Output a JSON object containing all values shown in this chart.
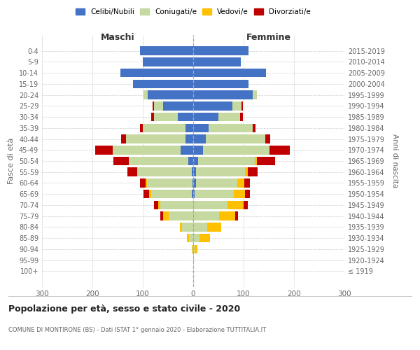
{
  "age_groups": [
    "0-4",
    "5-9",
    "10-14",
    "15-19",
    "20-24",
    "25-29",
    "30-34",
    "35-39",
    "40-44",
    "45-49",
    "50-54",
    "55-59",
    "60-64",
    "65-69",
    "70-74",
    "75-79",
    "80-84",
    "85-89",
    "90-94",
    "95-99",
    "100+"
  ],
  "birth_years": [
    "2015-2019",
    "2010-2014",
    "2005-2009",
    "2000-2004",
    "1995-1999",
    "1990-1994",
    "1985-1989",
    "1980-1984",
    "1975-1979",
    "1970-1974",
    "1965-1969",
    "1960-1964",
    "1955-1959",
    "1950-1954",
    "1945-1949",
    "1940-1944",
    "1935-1939",
    "1930-1934",
    "1925-1929",
    "1920-1924",
    "≤ 1919"
  ],
  "male_celibi": [
    105,
    100,
    145,
    120,
    90,
    60,
    30,
    15,
    15,
    25,
    10,
    3,
    2,
    3,
    0,
    0,
    0,
    0,
    0,
    0,
    0
  ],
  "male_coniugati": [
    0,
    0,
    0,
    0,
    8,
    18,
    48,
    85,
    118,
    135,
    118,
    108,
    90,
    80,
    65,
    48,
    22,
    8,
    2,
    0,
    0
  ],
  "male_vedovi": [
    0,
    0,
    0,
    0,
    0,
    0,
    0,
    0,
    0,
    0,
    0,
    0,
    3,
    5,
    5,
    12,
    5,
    5,
    1,
    0,
    0
  ],
  "male_divorziati": [
    0,
    0,
    0,
    0,
    0,
    2,
    5,
    5,
    10,
    35,
    30,
    20,
    10,
    10,
    8,
    5,
    0,
    0,
    0,
    0,
    0
  ],
  "female_nubili": [
    110,
    95,
    145,
    110,
    118,
    78,
    50,
    30,
    25,
    20,
    10,
    5,
    5,
    3,
    0,
    0,
    0,
    0,
    0,
    0,
    0
  ],
  "female_coniugate": [
    0,
    0,
    0,
    0,
    8,
    18,
    43,
    88,
    118,
    132,
    112,
    98,
    82,
    78,
    68,
    52,
    28,
    12,
    3,
    1,
    0
  ],
  "female_vedove": [
    0,
    0,
    0,
    0,
    0,
    0,
    0,
    0,
    0,
    0,
    5,
    5,
    15,
    22,
    32,
    32,
    28,
    22,
    5,
    1,
    0
  ],
  "female_divorziate": [
    0,
    0,
    0,
    0,
    0,
    2,
    5,
    5,
    10,
    40,
    35,
    20,
    10,
    10,
    8,
    5,
    0,
    0,
    0,
    0,
    0
  ],
  "color_celibi": "#4472c4",
  "color_coniugati": "#c5d9a0",
  "color_vedovi": "#ffc000",
  "color_divorziati": "#c00000",
  "xlim": 300,
  "title": "Popolazione per età, sesso e stato civile - 2020",
  "subtitle": "COMUNE DI MONTIRONE (BS) - Dati ISTAT 1° gennaio 2020 - Elaborazione TUTTITALIA.IT",
  "ylabel_left": "Fasce di età",
  "ylabel_right": "Anni di nascita",
  "label_maschi": "Maschi",
  "label_femmine": "Femmine",
  "legend_labels": [
    "Celibi/Nubili",
    "Coniugati/e",
    "Vedovi/e",
    "Divorziati/e"
  ],
  "bg_color": "#ffffff",
  "grid_color": "#cccccc",
  "text_color": "#666666",
  "title_color": "#222222"
}
